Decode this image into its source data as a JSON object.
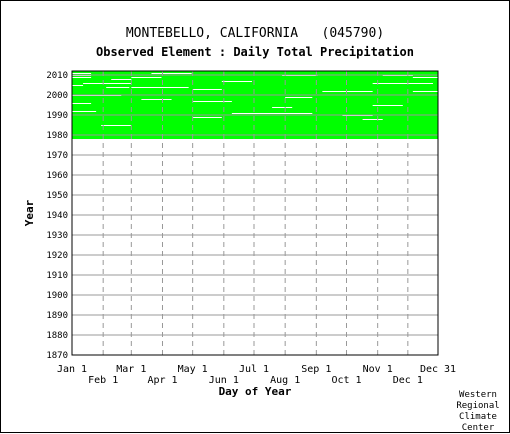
{
  "header": {
    "title": "MONTEBELLO, CALIFORNIA   (045790)",
    "subtitle": "Observed Element : Daily Total Precipitation"
  },
  "credit": [
    "Western",
    "Regional",
    "Climate",
    "Center"
  ],
  "chart_data": {
    "type": "heatmap",
    "title": "MONTEBELLO, CALIFORNIA   (045790)",
    "subtitle": "Observed Element : Daily Total Precipitation",
    "xlabel": "Day of Year",
    "ylabel": "Year",
    "xlim": [
      1,
      365
    ],
    "ylim": [
      1870,
      2012
    ],
    "grid": true,
    "data_color": "#00ff00",
    "x_ticks_row1": [
      {
        "label": "Jan 1",
        "day": 1
      },
      {
        "label": "Mar 1",
        "day": 60
      },
      {
        "label": "May 1",
        "day": 121
      },
      {
        "label": "Jul 1",
        "day": 182
      },
      {
        "label": "Sep 1",
        "day": 244
      },
      {
        "label": "Nov 1",
        "day": 305
      },
      {
        "label": "Dec 31",
        "day": 365
      }
    ],
    "x_ticks_row2": [
      {
        "label": "Feb 1",
        "day": 32
      },
      {
        "label": "Apr 1",
        "day": 91
      },
      {
        "label": "Jun 1",
        "day": 152
      },
      {
        "label": "Aug 1",
        "day": 213
      },
      {
        "label": "Oct 1",
        "day": 274
      },
      {
        "label": "Dec 1",
        "day": 335
      }
    ],
    "y_ticks": [
      1870,
      1880,
      1890,
      1900,
      1910,
      1920,
      1930,
      1940,
      1950,
      1960,
      1970,
      1980,
      1990,
      2000,
      2010
    ],
    "coverage": {
      "start_year": 1978,
      "end_year": 2010,
      "partial_year": 2011,
      "partial_end_day": 365
    },
    "gaps": [
      {
        "year": 2010,
        "start_day": 1,
        "end_day": 20
      },
      {
        "year": 2009,
        "start_day": 1,
        "end_day": 20
      },
      {
        "year": 2008,
        "start_day": 1,
        "end_day": 20
      },
      {
        "year": 2008,
        "start_day": 60,
        "end_day": 90
      },
      {
        "year": 2007,
        "start_day": 40,
        "end_day": 60
      },
      {
        "year": 2010,
        "start_day": 80,
        "end_day": 120
      },
      {
        "year": 2009,
        "start_day": 210,
        "end_day": 245
      },
      {
        "year": 2009,
        "start_day": 310,
        "end_day": 340
      },
      {
        "year": 2008,
        "start_day": 340,
        "end_day": 365
      },
      {
        "year": 2006,
        "start_day": 150,
        "end_day": 180
      },
      {
        "year": 2005,
        "start_day": 12,
        "end_day": 60
      },
      {
        "year": 2005,
        "start_day": 300,
        "end_day": 360
      },
      {
        "year": 2004,
        "start_day": 1,
        "end_day": 12
      },
      {
        "year": 2003,
        "start_day": 35,
        "end_day": 58
      },
      {
        "year": 2003,
        "start_day": 60,
        "end_day": 117
      },
      {
        "year": 2002,
        "start_day": 121,
        "end_day": 150
      },
      {
        "year": 2001,
        "start_day": 250,
        "end_day": 300
      },
      {
        "year": 2001,
        "start_day": 340,
        "end_day": 365
      },
      {
        "year": 1999,
        "start_day": 1,
        "end_day": 50
      },
      {
        "year": 1998,
        "start_day": 213,
        "end_day": 240
      },
      {
        "year": 1997,
        "start_day": 70,
        "end_day": 100
      },
      {
        "year": 1996,
        "start_day": 121,
        "end_day": 160
      },
      {
        "year": 1995,
        "start_day": 1,
        "end_day": 20
      },
      {
        "year": 1994,
        "start_day": 300,
        "end_day": 330
      },
      {
        "year": 1993,
        "start_day": 200,
        "end_day": 220
      },
      {
        "year": 1991,
        "start_day": 1,
        "end_day": 25
      },
      {
        "year": 1990,
        "start_day": 160,
        "end_day": 240
      },
      {
        "year": 1989,
        "start_day": 270,
        "end_day": 300
      },
      {
        "year": 1988,
        "start_day": 121,
        "end_day": 150
      },
      {
        "year": 1987,
        "start_day": 290,
        "end_day": 310
      },
      {
        "year": 1984,
        "start_day": 30,
        "end_day": 60
      }
    ]
  }
}
